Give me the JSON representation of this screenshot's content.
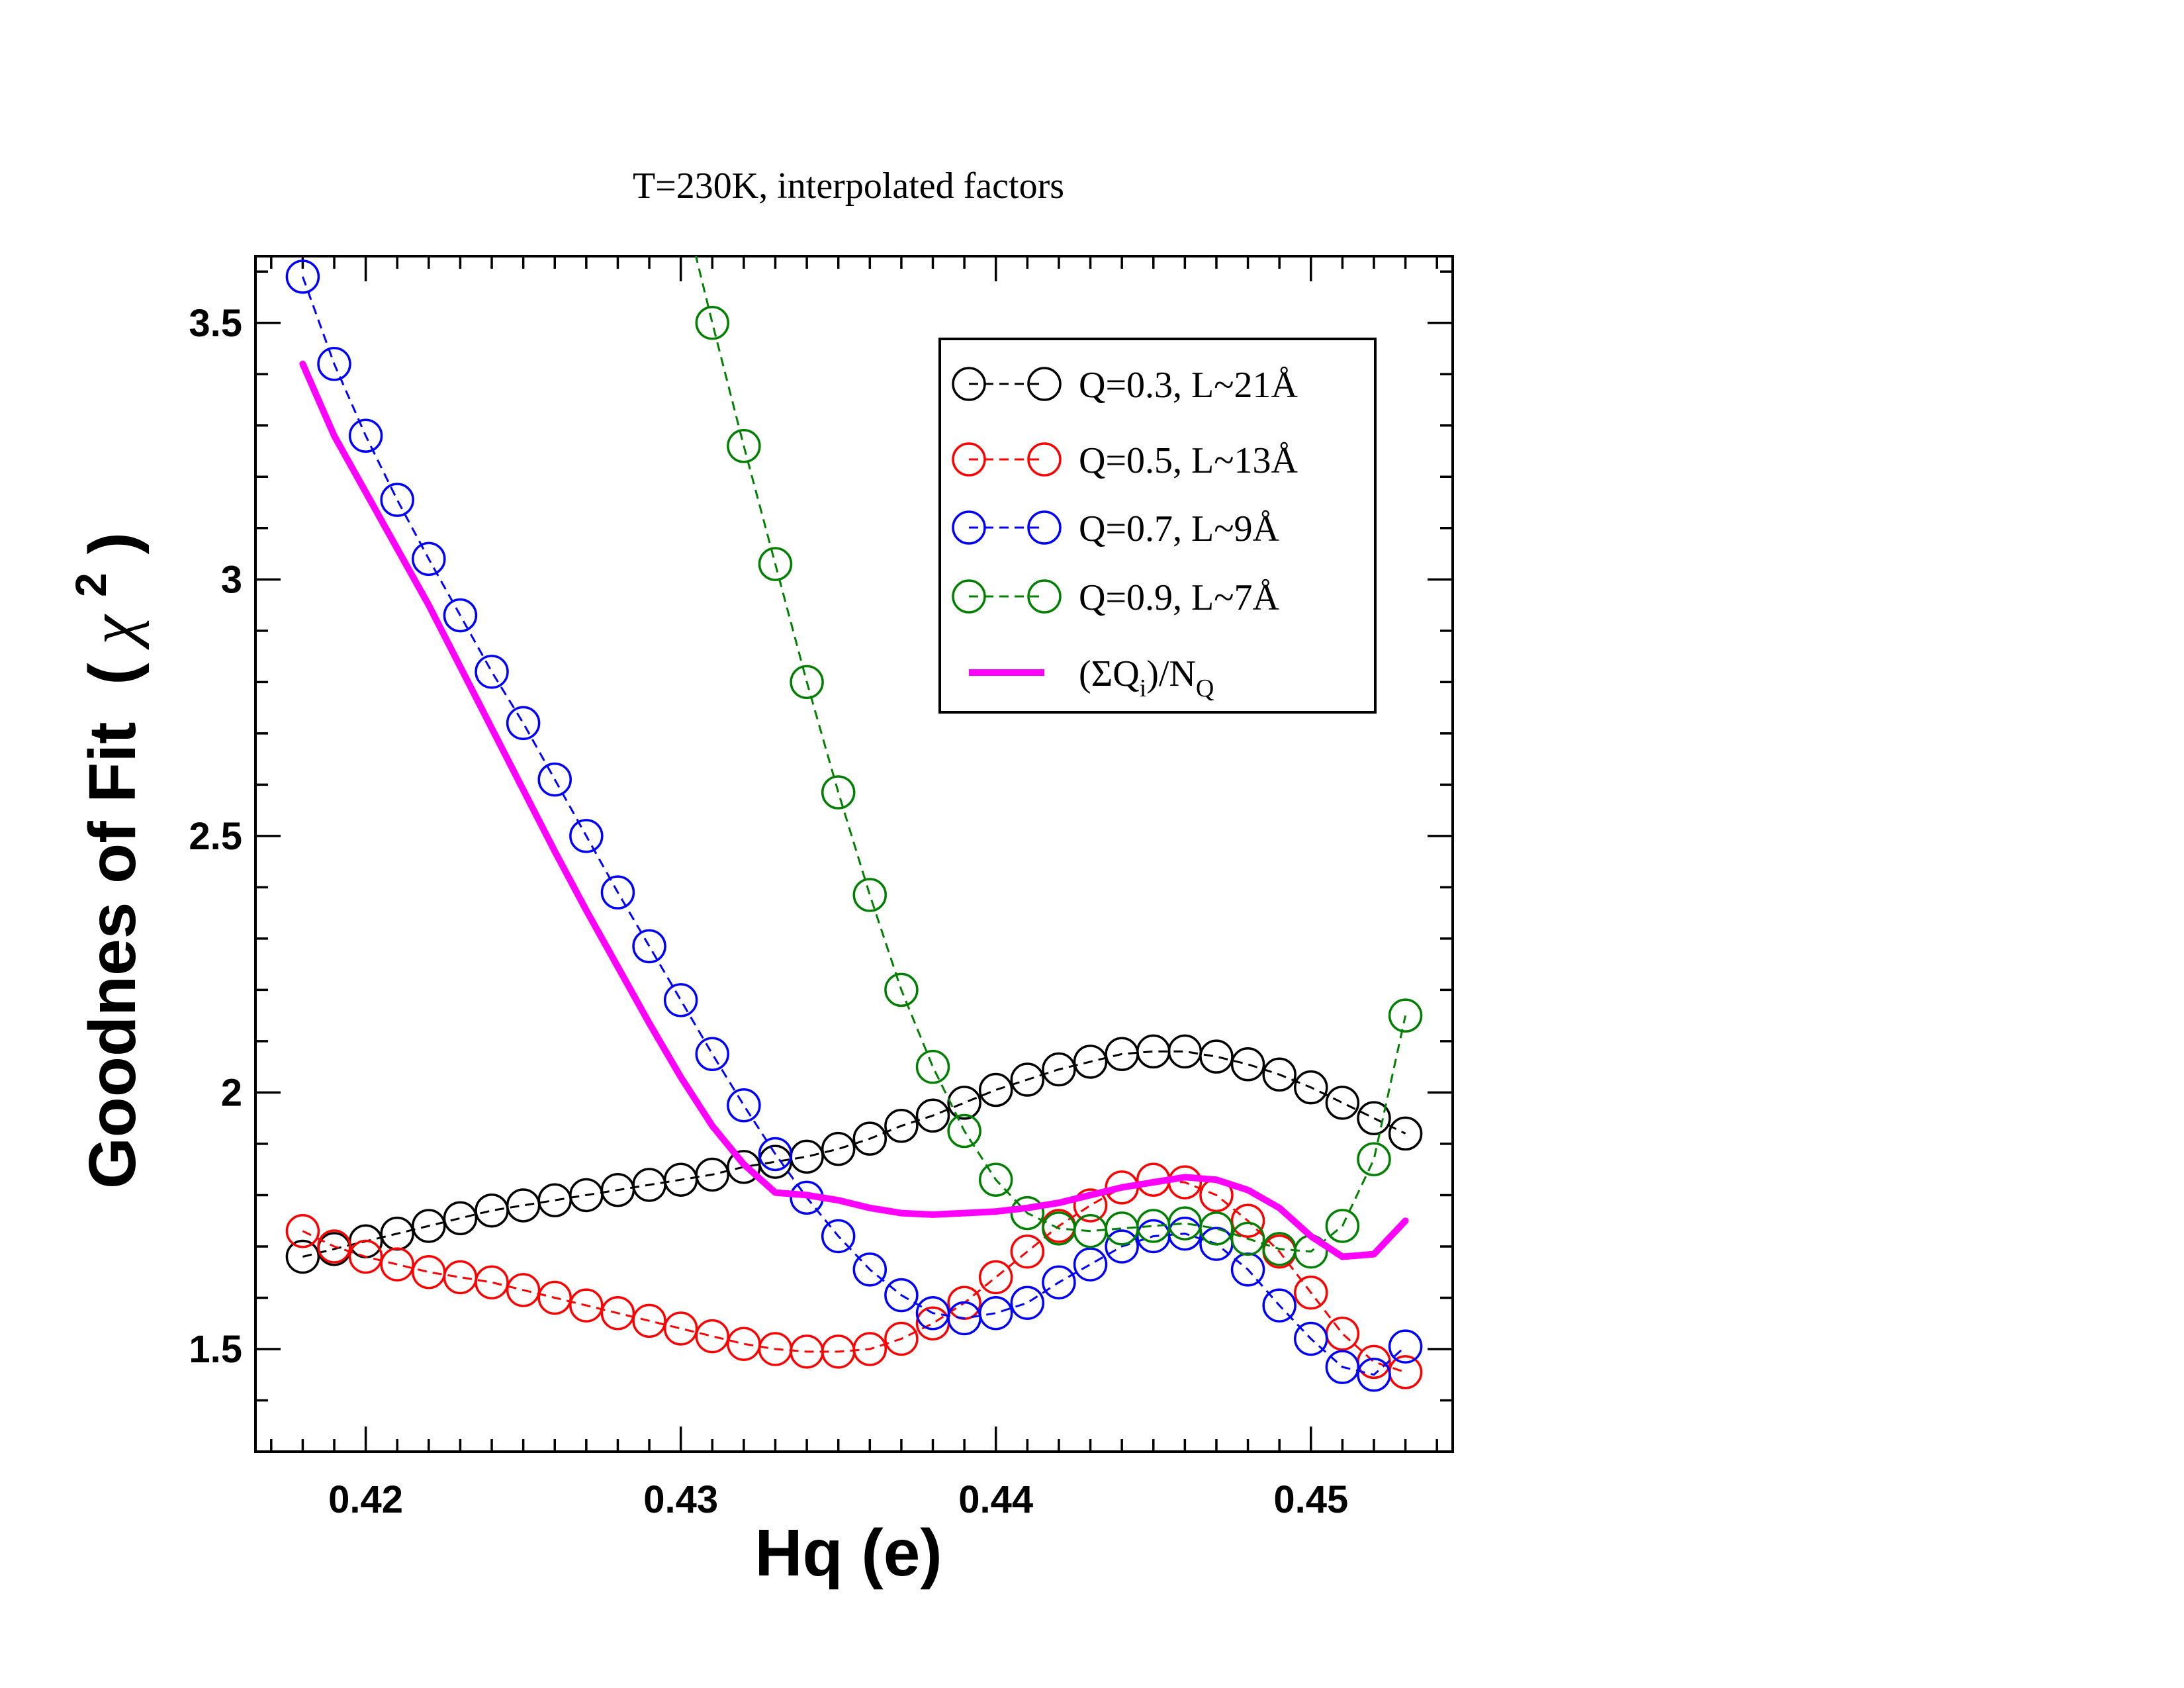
{
  "chart_data": {
    "type": "line",
    "title": "T=230K, interpolated factors",
    "xlabel": "Hq (e)",
    "ylabel_main": "Goodnes of Fit",
    "ylabel_symbol": "χ",
    "ylabel_sup": "2",
    "xlim": [
      0.4165,
      0.4545
    ],
    "ylim": [
      1.3,
      3.63
    ],
    "x_ticks": [
      0.42,
      0.43,
      0.44,
      0.45
    ],
    "x_tick_labels": [
      "0.42",
      "0.43",
      "0.44",
      "0.45"
    ],
    "y_ticks": [
      1.5,
      2,
      2.5,
      3,
      3.5
    ],
    "y_tick_labels": [
      "1.5",
      "2",
      "2.5",
      "3",
      "3.5"
    ],
    "legend_position": "top-right",
    "x": [
      0.418,
      0.419,
      0.42,
      0.421,
      0.422,
      0.423,
      0.424,
      0.425,
      0.426,
      0.427,
      0.428,
      0.429,
      0.43,
      0.431,
      0.432,
      0.433,
      0.434,
      0.435,
      0.436,
      0.437,
      0.438,
      0.439,
      0.44,
      0.441,
      0.442,
      0.443,
      0.444,
      0.445,
      0.446,
      0.447,
      0.448,
      0.449,
      0.45,
      0.451,
      0.452,
      0.453
    ],
    "series": [
      {
        "name": "Q=0.3, L~21Å",
        "color": "#000000",
        "marker": "circle",
        "line": "dashed",
        "values": [
          1.68,
          1.695,
          1.71,
          1.725,
          1.74,
          1.755,
          1.77,
          1.78,
          1.79,
          1.8,
          1.81,
          1.82,
          1.83,
          1.84,
          1.855,
          1.865,
          1.875,
          1.89,
          1.91,
          1.935,
          1.955,
          1.98,
          2.005,
          2.025,
          2.045,
          2.06,
          2.075,
          2.08,
          2.08,
          2.07,
          2.055,
          2.035,
          2.01,
          1.98,
          1.95,
          1.92
        ]
      },
      {
        "name": "Q=0.5, L~13Å",
        "color": "#ff0000",
        "marker": "circle",
        "line": "dashed",
        "values": [
          1.73,
          1.7,
          1.68,
          1.665,
          1.65,
          1.64,
          1.63,
          1.615,
          1.6,
          1.585,
          1.57,
          1.555,
          1.54,
          1.525,
          1.51,
          1.5,
          1.495,
          1.495,
          1.5,
          1.52,
          1.55,
          1.59,
          1.64,
          1.69,
          1.74,
          1.78,
          1.815,
          1.83,
          1.825,
          1.8,
          1.75,
          1.69,
          1.61,
          1.53,
          1.475,
          1.455
        ]
      },
      {
        "name": "Q=0.7, L~9Å",
        "color": "#0000ff",
        "marker": "circle",
        "line": "dashed",
        "values": [
          3.59,
          3.42,
          3.28,
          3.155,
          3.04,
          2.93,
          2.82,
          2.72,
          2.61,
          2.5,
          2.39,
          2.285,
          2.18,
          2.075,
          1.975,
          1.88,
          1.795,
          1.72,
          1.655,
          1.605,
          1.57,
          1.56,
          1.57,
          1.59,
          1.63,
          1.665,
          1.7,
          1.72,
          1.725,
          1.705,
          1.655,
          1.585,
          1.52,
          1.465,
          1.45,
          1.505
        ]
      },
      {
        "name": "Q=0.9, L~7Å",
        "color": "#008000",
        "marker": "circle",
        "line": "dashed",
        "values": [
          null,
          null,
          null,
          null,
          null,
          null,
          null,
          null,
          null,
          null,
          null,
          null,
          3.75,
          3.5,
          3.26,
          3.03,
          2.8,
          2.585,
          2.385,
          2.2,
          2.05,
          1.925,
          1.83,
          1.765,
          1.735,
          1.73,
          1.735,
          1.74,
          1.745,
          1.735,
          1.715,
          1.695,
          1.69,
          1.74,
          1.87,
          2.15
        ]
      },
      {
        "name": "(ΣQ",
        "name_sub": "i",
        "name_mid": ")/N",
        "name_sub2": "Q",
        "color": "#ff00ff",
        "marker": "none",
        "line": "solid",
        "values": [
          3.42,
          3.28,
          3.17,
          3.06,
          2.95,
          2.83,
          2.71,
          2.59,
          2.47,
          2.355,
          2.245,
          2.135,
          2.03,
          1.935,
          1.86,
          1.805,
          1.8,
          1.79,
          1.775,
          1.765,
          1.762,
          1.765,
          1.768,
          1.775,
          1.785,
          1.8,
          1.815,
          1.825,
          1.835,
          1.83,
          1.81,
          1.775,
          1.72,
          1.68,
          1.685,
          1.75
        ]
      }
    ]
  }
}
